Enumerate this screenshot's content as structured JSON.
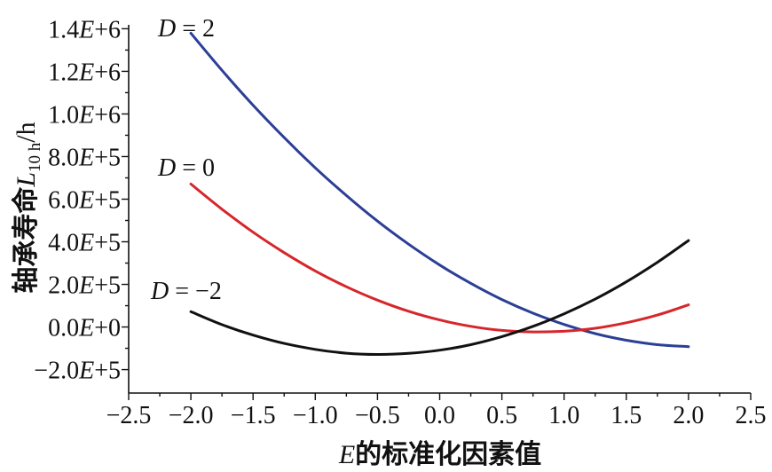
{
  "chart_data": {
    "type": "line",
    "xlabel": {
      "symbol": "E",
      "text": "的标准化因素值"
    },
    "ylabel": {
      "text": "轴承寿命",
      "symbol": "L",
      "subscript": "10 h",
      "unit": "/h"
    },
    "xlim": [
      -2.5,
      2.5
    ],
    "ylim": [
      -310000,
      1410000
    ],
    "grid": false,
    "x_ticks": [
      -2.5,
      -2.0,
      -1.5,
      -1.0,
      -0.5,
      0.0,
      0.5,
      1.0,
      1.5,
      2.0,
      2.5
    ],
    "x_tick_labels": [
      "−2.5",
      "−2.0",
      "−1.5",
      "−1.0",
      "−0.5",
      "0.0",
      "0.5",
      "1.0",
      "1.5",
      "2.0",
      "2.5"
    ],
    "y_ticks": [
      -200000,
      0,
      200000,
      400000,
      600000,
      800000,
      1000000,
      1200000,
      1400000
    ],
    "y_tick_labels": [
      "−2.0E+5",
      "0.0E+0",
      "2.0E+5",
      "4.0E+5",
      "6.0E+5",
      "8.0E+5",
      "1.0E+6",
      "1.2E+6",
      "1.4E+6"
    ],
    "x": [
      -2.0,
      -1.75,
      -1.5,
      -1.25,
      -1.0,
      -0.75,
      -0.5,
      -0.25,
      0.0,
      0.25,
      0.5,
      0.75,
      1.0,
      1.25,
      1.5,
      1.75,
      2.0
    ],
    "series": [
      {
        "name": "D = 2",
        "color": "#2c3f96",
        "values": [
          1379000,
          1205000,
          1041000,
          889000,
          747000,
          617000,
          497000,
          389000,
          291000,
          205000,
          129000,
          65000,
          12000,
          -31000,
          -62000,
          -83000,
          -92000
        ]
      },
      {
        "name": "D = 0",
        "color": "#d7262b",
        "values": [
          671000,
          553000,
          445000,
          349000,
          263000,
          189000,
          126000,
          74000,
          33000,
          3000,
          -16000,
          -23000,
          -20000,
          -6000,
          20000,
          56000,
          104000
        ]
      },
      {
        "name": "D = −2",
        "color": "#111111",
        "values": [
          72000,
          11000,
          -38000,
          -77000,
          -105000,
          -123000,
          -129000,
          -124000,
          -109000,
          -83000,
          -45000,
          3000,
          62000,
          131000,
          212000,
          304000,
          406000
        ]
      }
    ]
  }
}
